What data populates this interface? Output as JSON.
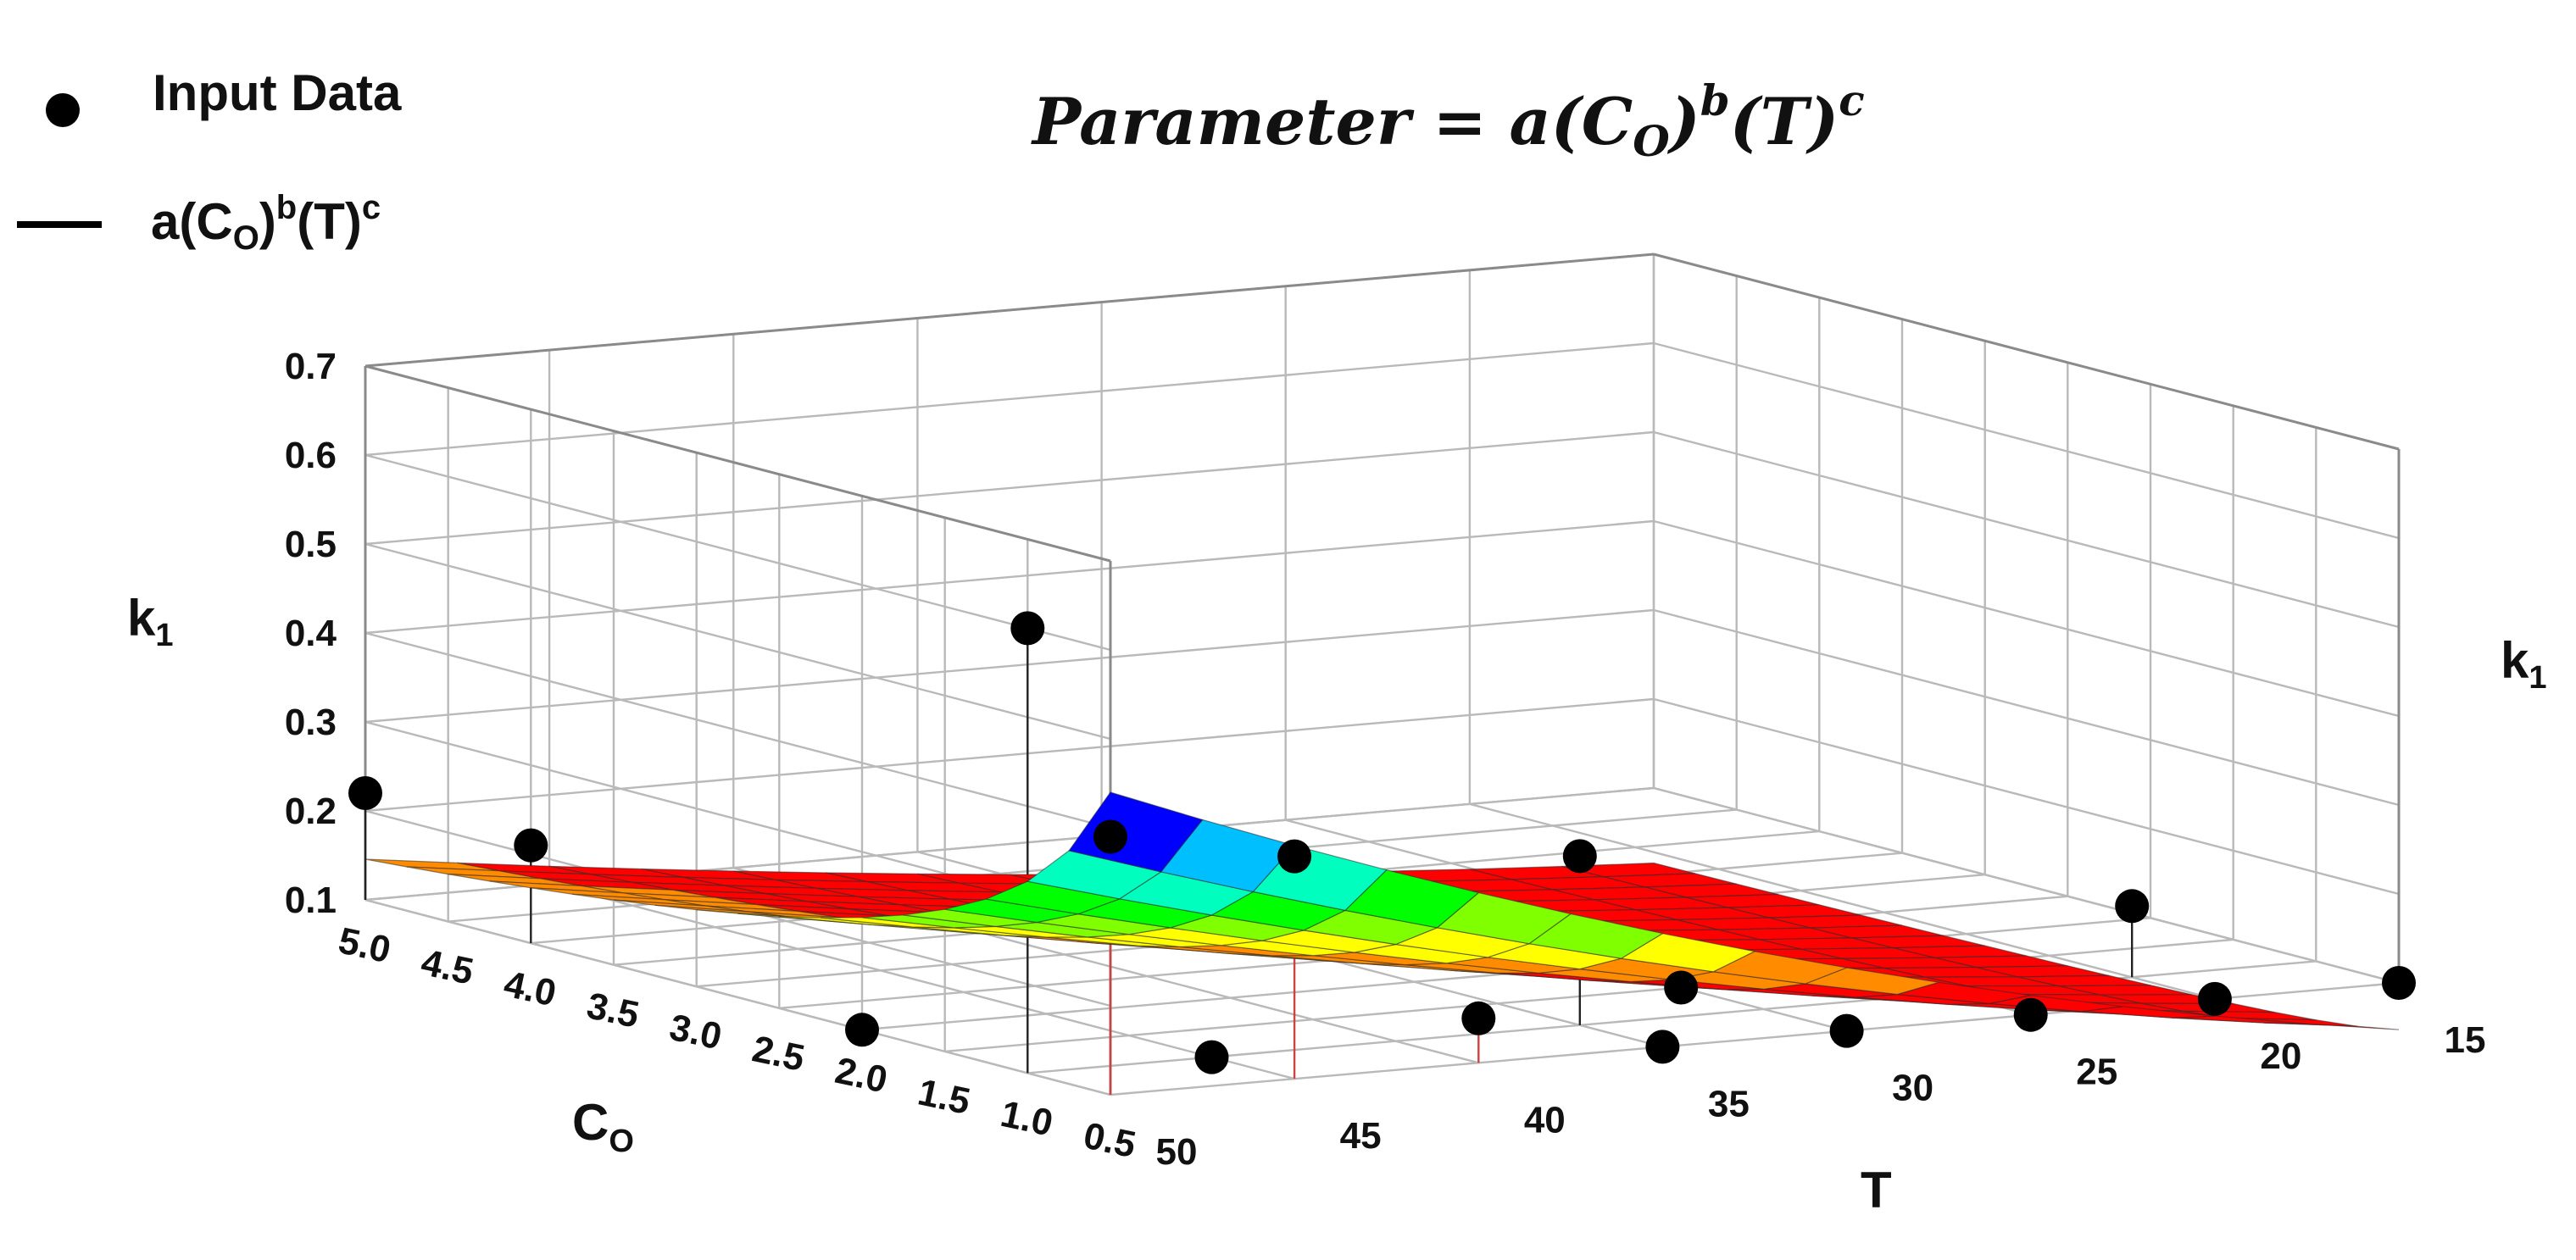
{
  "chart_data": {
    "type": "scatter",
    "surface_type": "surface3d",
    "title": "Parameter = a(C_O)^b(T)^c",
    "legend": {
      "placement": "top-left",
      "entries": [
        {
          "marker": "dot",
          "label": "Input Data"
        },
        {
          "marker": "line",
          "label": "a(C_O)^b(T)^c"
        }
      ]
    },
    "axes": {
      "x": {
        "label": "C_O",
        "range": [
          0.5,
          5.0
        ],
        "ticks": [
          "5.0",
          "4.5",
          "4.0",
          "3.5",
          "3.0",
          "2.5",
          "2.0",
          "1.5",
          "1.0",
          "0.5"
        ]
      },
      "y": {
        "label": "T",
        "range": [
          15,
          50
        ],
        "ticks": [
          "50",
          "45",
          "40",
          "35",
          "30",
          "25",
          "20",
          "15"
        ]
      },
      "z": {
        "label": "k_1",
        "right_label": "k_1",
        "range": [
          0.1,
          0.7
        ],
        "ticks": [
          "0.7",
          "0.6",
          "0.5",
          "0.4",
          "0.3",
          "0.2",
          "0.1"
        ]
      }
    },
    "grid": true,
    "surface": {
      "label": "a(C_O)^b(T)^c",
      "colormap": [
        "#ff0000",
        "#ff8c00",
        "#ffff00",
        "#7fff00",
        "#00ff00",
        "#00ffbf",
        "#00bfff",
        "#0000ff",
        "#8a00ff",
        "#ff00ff"
      ],
      "peak_note": "maximum near C_O = 0.5, T = 50"
    },
    "series": [
      {
        "name": "Input Data",
        "points": [
          {
            "C_O": 5.0,
            "T": 50,
            "k1": 0.22
          },
          {
            "C_O": 4.0,
            "T": 50,
            "k1": 0.21
          },
          {
            "C_O": 1.0,
            "T": 50,
            "k1": 0.6
          },
          {
            "C_O": 0.5,
            "T": 50,
            "k1": 0.39
          },
          {
            "C_O": 0.5,
            "T": 45,
            "k1": 0.35
          },
          {
            "C_O": 1.0,
            "T": 35,
            "k1": 0.29
          },
          {
            "C_O": 2.0,
            "T": 50,
            "k1": 0.1
          },
          {
            "C_O": 1.0,
            "T": 45,
            "k1": 0.1
          },
          {
            "C_O": 0.5,
            "T": 35,
            "k1": 0.1
          },
          {
            "C_O": 0.5,
            "T": 30,
            "k1": 0.1
          },
          {
            "C_O": 0.5,
            "T": 25,
            "k1": 0.1
          },
          {
            "C_O": 0.5,
            "T": 20,
            "k1": 0.1
          },
          {
            "C_O": 0.5,
            "T": 15,
            "k1": 0.1
          },
          {
            "C_O": 1.0,
            "T": 20,
            "k1": 0.18
          },
          {
            "C_O": 0.5,
            "T": 40,
            "k1": 0.15
          },
          {
            "C_O": 1.5,
            "T": 30,
            "k1": 0.1
          }
        ]
      }
    ]
  }
}
